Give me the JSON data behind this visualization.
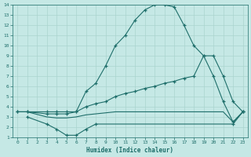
{
  "xlabel": "Humidex (Indice chaleur)",
  "xlim": [
    -0.5,
    23.5
  ],
  "ylim": [
    1,
    14
  ],
  "xticks": [
    0,
    1,
    2,
    3,
    4,
    5,
    6,
    7,
    8,
    9,
    10,
    11,
    12,
    13,
    14,
    15,
    16,
    17,
    18,
    19,
    20,
    21,
    22,
    23
  ],
  "yticks": [
    1,
    2,
    3,
    4,
    5,
    6,
    7,
    8,
    9,
    10,
    11,
    12,
    13,
    14
  ],
  "background_color": "#c5e8e5",
  "grid_color": "#aad4cf",
  "line_color": "#1e6e6a",
  "line1_x": [
    0,
    1,
    3,
    4,
    5,
    6,
    7,
    8,
    9,
    10,
    11,
    12,
    13,
    14,
    15,
    16,
    17,
    18,
    19,
    20,
    21,
    22,
    23
  ],
  "line1_y": [
    3.5,
    3.5,
    3.5,
    3.5,
    3.5,
    3.5,
    5.5,
    6.3,
    8.0,
    10.0,
    11.0,
    12.5,
    13.5,
    14.0,
    14.0,
    13.8,
    12.0,
    10.0,
    9.0,
    7.0,
    4.5,
    2.5,
    3.5
  ],
  "line2_x": [
    0,
    1,
    3,
    4,
    5,
    6,
    7,
    8,
    9,
    10,
    11,
    12,
    13,
    14,
    15,
    16,
    17,
    18,
    19,
    20,
    21,
    22,
    23
  ],
  "line2_y": [
    3.5,
    3.5,
    3.3,
    3.3,
    3.3,
    3.5,
    4.0,
    4.3,
    4.5,
    5.0,
    5.3,
    5.5,
    5.8,
    6.0,
    6.3,
    6.5,
    6.8,
    7.0,
    9.0,
    9.0,
    7.0,
    4.5,
    3.5
  ],
  "line3_x": [
    0,
    1,
    3,
    4,
    5,
    6,
    7,
    8,
    9,
    10,
    11,
    12,
    13,
    14,
    15,
    16,
    17,
    18,
    19,
    20,
    21,
    22,
    23
  ],
  "line3_y": [
    3.5,
    3.5,
    3.0,
    2.9,
    2.9,
    3.0,
    3.2,
    3.3,
    3.4,
    3.5,
    3.5,
    3.5,
    3.5,
    3.5,
    3.5,
    3.5,
    3.5,
    3.5,
    3.5,
    3.5,
    3.5,
    2.5,
    3.5
  ],
  "line4_x": [
    1,
    3,
    4,
    5,
    6,
    7,
    8,
    22,
    23
  ],
  "line4_y": [
    3.0,
    2.3,
    1.8,
    1.2,
    1.2,
    1.8,
    2.3,
    2.3,
    3.5
  ]
}
